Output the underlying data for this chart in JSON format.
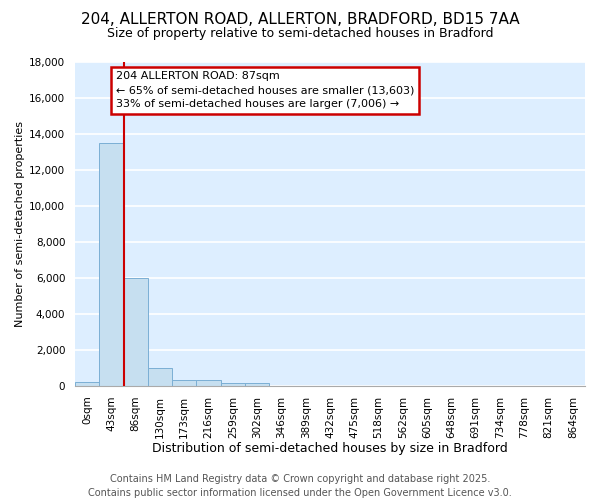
{
  "title": "204, ALLERTON ROAD, ALLERTON, BRADFORD, BD15 7AA",
  "subtitle": "Size of property relative to semi-detached houses in Bradford",
  "xlabel": "Distribution of semi-detached houses by size in Bradford",
  "ylabel": "Number of semi-detached properties",
  "bin_labels": [
    "0sqm",
    "43sqm",
    "86sqm",
    "130sqm",
    "173sqm",
    "216sqm",
    "259sqm",
    "302sqm",
    "346sqm",
    "389sqm",
    "432sqm",
    "475sqm",
    "518sqm",
    "562sqm",
    "605sqm",
    "648sqm",
    "691sqm",
    "734sqm",
    "778sqm",
    "821sqm",
    "864sqm"
  ],
  "bin_values": [
    200,
    13500,
    6000,
    1000,
    350,
    350,
    150,
    150,
    0,
    0,
    0,
    0,
    0,
    0,
    0,
    0,
    0,
    0,
    0,
    0,
    0
  ],
  "bar_color": "#c6dff0",
  "bar_edge_color": "#7bafd4",
  "red_line_bin": 2,
  "annotation_title": "204 ALLERTON ROAD: 87sqm",
  "annotation_line2": "← 65% of semi-detached houses are smaller (13,603)",
  "annotation_line3": "33% of semi-detached houses are larger (7,006) →",
  "annotation_box_color": "#ffffff",
  "annotation_box_edge": "#cc0000",
  "ylim": [
    0,
    18000
  ],
  "yticks": [
    0,
    2000,
    4000,
    6000,
    8000,
    10000,
    12000,
    14000,
    16000,
    18000
  ],
  "footer_line1": "Contains HM Land Registry data © Crown copyright and database right 2025.",
  "footer_line2": "Contains public sector information licensed under the Open Government Licence v3.0.",
  "plot_bg_color": "#ddeeff",
  "fig_bg_color": "#ffffff",
  "grid_color": "#ffffff",
  "title_fontsize": 11,
  "subtitle_fontsize": 9,
  "ylabel_fontsize": 8,
  "xlabel_fontsize": 9,
  "tick_fontsize": 7.5,
  "footer_fontsize": 7
}
